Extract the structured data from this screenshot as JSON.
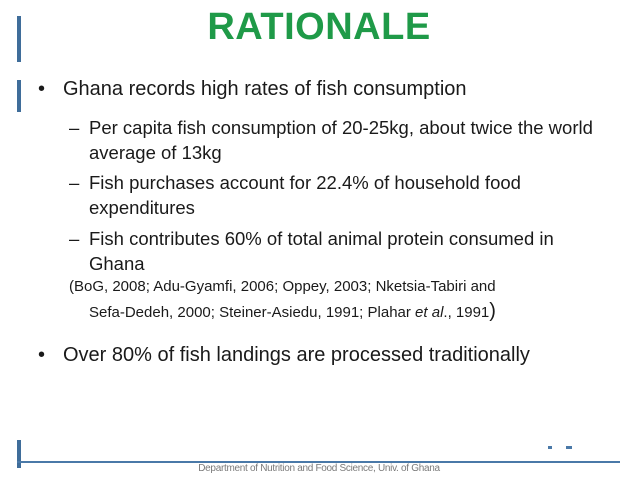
{
  "slide": {
    "title": "RATIONALE",
    "bullets": [
      {
        "marker": "•",
        "text": "Ghana records high rates of fish consumption"
      },
      {
        "marker": "•",
        "text": "Over 80% of fish landings are processed traditionally"
      }
    ],
    "subbullets": [
      {
        "marker": "–",
        "text": "Per capita fish consumption of 20-25kg, about twice the world average of 13kg"
      },
      {
        "marker": "–",
        "text": "Fish purchases account for 22.4% of household food expenditures"
      },
      {
        "marker": "–",
        "text": "Fish contributes 60% of total animal protein consumed in Ghana"
      }
    ],
    "references": {
      "line1": "(BoG, 2008; Adu-Gyamfi, 2006; Oppey, 2003; Nketsia-Tabiri and",
      "line2_pre": "Sefa-Dedeh, 2000; Steiner-Asiedu, 1991; Plahar ",
      "line2_italic": "et al",
      "line2_post": "., 1991",
      "close_paren": ")"
    },
    "footer": "Department of Nutrition and Food Science, Univ. of Ghana",
    "colors": {
      "title": "#1f9a48",
      "accent": "#3f6d9a",
      "text": "#1a1a1a",
      "footer": "#7a7a7a"
    }
  }
}
